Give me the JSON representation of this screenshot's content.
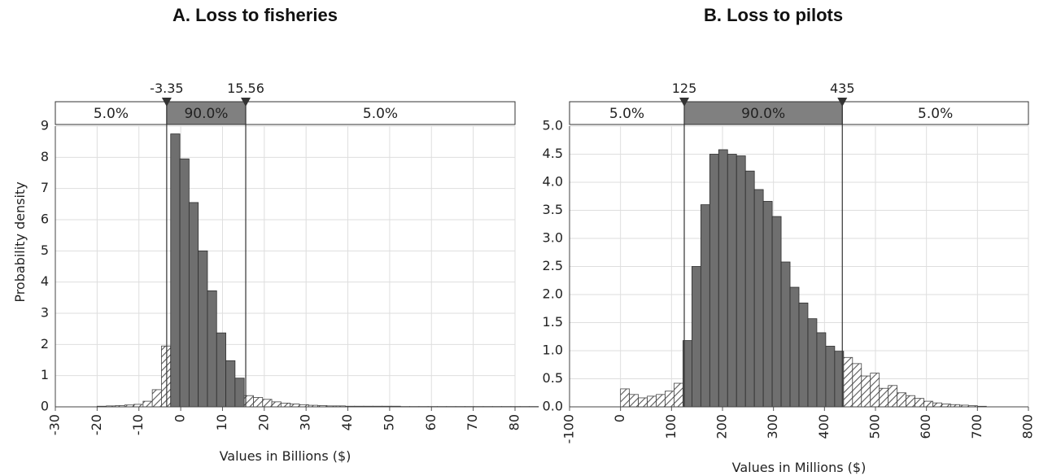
{
  "titles": [
    "A. Loss to fisheries",
    "B. Loss to pilots"
  ],
  "colors": {
    "bar": "#6f6f6f",
    "bar_edge": "#2d2d2d",
    "hatch": "#555555",
    "grid": "#dedede",
    "middle_band": "#808080"
  },
  "chart_data": [
    {
      "type": "bar",
      "title": "A. Loss to fisheries",
      "xlabel": "Values in Billions ($)",
      "ylabel": "Probability density",
      "xlim": [
        -30,
        80
      ],
      "ylim": [
        0,
        9
      ],
      "xticks": [
        "-30",
        "-20",
        "-10",
        "0",
        "10",
        "20",
        "30",
        "40",
        "50",
        "60",
        "70",
        "80"
      ],
      "yticks": [
        "0",
        "1",
        "2",
        "3",
        "4",
        "5",
        "6",
        "7",
        "8",
        "9"
      ],
      "grid": true,
      "bin_width": 2.2,
      "bin_start": -20,
      "values": [
        0.02,
        0.03,
        0.04,
        0.06,
        0.08,
        0.18,
        0.55,
        1.95,
        8.75,
        7.95,
        6.55,
        5.0,
        3.72,
        2.37,
        1.48,
        0.92,
        0.36,
        0.3,
        0.24,
        0.16,
        0.12,
        0.09,
        0.07,
        0.05,
        0.04,
        0.03,
        0.03,
        0.02,
        0.02,
        0.02,
        0.02,
        0.02,
        0.02,
        0.01,
        0.01,
        0.01,
        0.01,
        0.01,
        0.01,
        0.01,
        0.01,
        0.01,
        0.01,
        0.01,
        0.01,
        0.01,
        0.01,
        0.01
      ],
      "markers": {
        "lower": -3.35,
        "upper": 15.56,
        "lower_label": "-3.35",
        "upper_label": "15.56"
      },
      "bands": [
        "5.0%",
        "90.0%",
        "5.0%"
      ]
    },
    {
      "type": "bar",
      "title": "B. Loss to pilots",
      "xlabel": "Values in Millions ($)",
      "ylabel": "",
      "xlim": [
        -100,
        800
      ],
      "ylim": [
        0,
        5
      ],
      "xticks": [
        "-100",
        "0",
        "100",
        "200",
        "300",
        "400",
        "500",
        "600",
        "700",
        "800"
      ],
      "yticks": [
        "0.0",
        "0.5",
        "1.0",
        "1.5",
        "2.0",
        "2.5",
        "3.0",
        "3.5",
        "4.0",
        "4.5",
        "5.0"
      ],
      "grid": true,
      "bin_width": 17.5,
      "bin_start": 0,
      "values": [
        0.32,
        0.22,
        0.16,
        0.19,
        0.22,
        0.28,
        0.42,
        1.18,
        2.5,
        3.6,
        4.5,
        4.58,
        4.5,
        4.47,
        4.2,
        3.87,
        3.66,
        3.39,
        2.58,
        2.13,
        1.85,
        1.57,
        1.32,
        1.08,
        0.99,
        0.88,
        0.77,
        0.55,
        0.6,
        0.33,
        0.38,
        0.25,
        0.2,
        0.15,
        0.1,
        0.07,
        0.05,
        0.04,
        0.03,
        0.02,
        0.01
      ],
      "markers": {
        "lower": 125,
        "upper": 435,
        "lower_label": "125",
        "upper_label": "435"
      },
      "bands": [
        "5.0%",
        "90.0%",
        "5.0%"
      ]
    }
  ]
}
